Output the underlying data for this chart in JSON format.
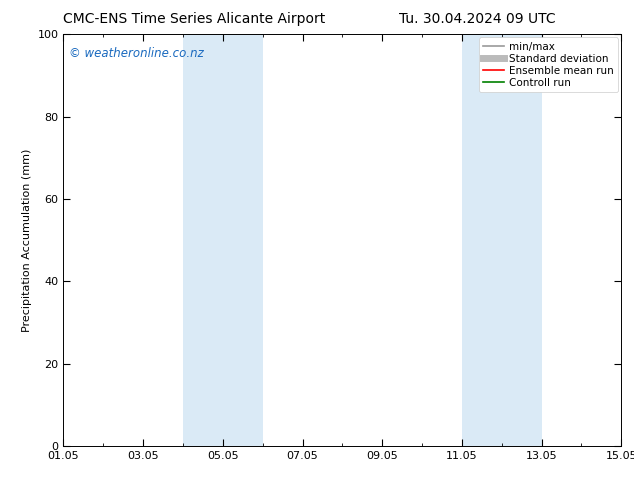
{
  "title_left": "CMC-ENS Time Series Alicante Airport",
  "title_right": "Tu. 30.04.2024 09 UTC",
  "ylabel": "Precipitation Accumulation (mm)",
  "ylim": [
    0,
    100
  ],
  "yticks": [
    0,
    20,
    40,
    60,
    80,
    100
  ],
  "xtick_labels": [
    "01.05",
    "03.05",
    "05.05",
    "07.05",
    "09.05",
    "11.05",
    "13.05",
    "15.05"
  ],
  "xtick_positions": [
    0,
    2,
    4,
    6,
    8,
    10,
    12,
    14
  ],
  "xlim": [
    0,
    14
  ],
  "shaded_bands": [
    {
      "x_start": 3.0,
      "x_end": 5.0,
      "color": "#daeaf6"
    },
    {
      "x_start": 10.0,
      "x_end": 12.0,
      "color": "#daeaf6"
    }
  ],
  "watermark_text": "© weatheronline.co.nz",
  "watermark_color": "#1a6abf",
  "background_color": "#ffffff",
  "legend_items": [
    {
      "label": "min/max",
      "color": "#999999",
      "lw": 1.2,
      "style": "solid"
    },
    {
      "label": "Standard deviation",
      "color": "#bbbbbb",
      "lw": 5,
      "style": "solid"
    },
    {
      "label": "Ensemble mean run",
      "color": "#ff0000",
      "lw": 1.2,
      "style": "solid"
    },
    {
      "label": "Controll run",
      "color": "#008000",
      "lw": 1.2,
      "style": "solid"
    }
  ],
  "title_fontsize": 10,
  "ylabel_fontsize": 8,
  "tick_fontsize": 8,
  "legend_fontsize": 7.5,
  "watermark_fontsize": 8.5
}
